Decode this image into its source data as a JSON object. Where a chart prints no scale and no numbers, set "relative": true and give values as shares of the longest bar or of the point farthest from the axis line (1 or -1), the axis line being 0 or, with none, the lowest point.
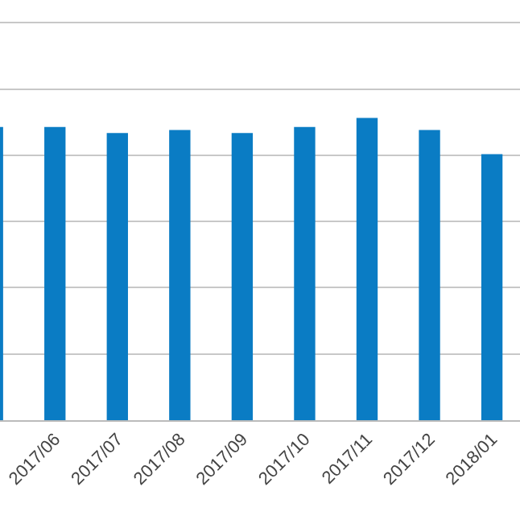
{
  "chart_data": {
    "type": "bar",
    "relative": true,
    "grid": "y",
    "categories": [
      null,
      "2017/06",
      "2017/07",
      "2017/08",
      "2017/09",
      "2017/10",
      "2017/11",
      "2017/12",
      "2018/01"
    ],
    "series": [
      {
        "color": "#0a7cc4",
        "values": [
          0.97,
          0.97,
          0.95,
          0.96,
          0.95,
          0.97,
          1,
          0.96,
          0.88
        ]
      }
    ]
  }
}
